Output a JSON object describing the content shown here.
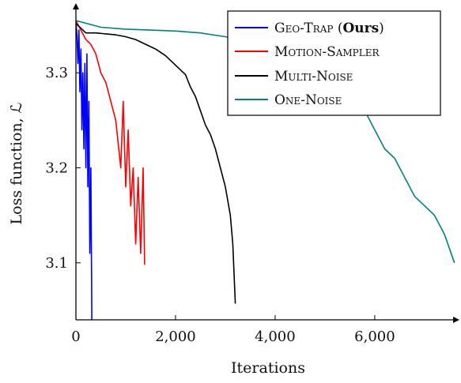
{
  "chart_data": {
    "type": "line",
    "xlabel": "Iterations",
    "ylabel": "Loss function, ℒ",
    "xlim": [
      0,
      7700
    ],
    "ylim": [
      3.04,
      3.37
    ],
    "x_ticks": [
      0,
      2000,
      4000,
      6000
    ],
    "x_tick_labels": [
      "0",
      "2,000",
      "4,000",
      "6,000"
    ],
    "y_ticks": [
      3.1,
      3.2,
      3.3
    ],
    "y_tick_labels": [
      "3.1",
      "3.2",
      "3.3"
    ],
    "grid": false,
    "legend_position": "top-right",
    "legend": {
      "geo_trap_prefix": "Geo-Trap (",
      "geo_trap_bold": "Ours",
      "geo_trap_suffix": ")",
      "motion_sampler": "Motion-Sampler",
      "multi_noise": "Multi-Noise",
      "one_noise": "One-Noise"
    },
    "series": [
      {
        "name": "Geo-Trap (Ours)",
        "color": "#0000ff",
        "x": [
          0,
          20,
          40,
          60,
          80,
          100,
          120,
          140,
          160,
          180,
          200,
          220,
          240,
          260,
          280,
          300,
          320
        ],
        "y": [
          3.355,
          3.34,
          3.31,
          3.345,
          3.28,
          3.325,
          3.24,
          3.3,
          3.22,
          3.31,
          3.2,
          3.32,
          3.18,
          3.27,
          3.11,
          3.2,
          3.035
        ]
      },
      {
        "name": "Motion-Sampler",
        "color": "#ff0000",
        "x": [
          0,
          100,
          200,
          300,
          400,
          500,
          600,
          700,
          800,
          900,
          950,
          1000,
          1050,
          1100,
          1150,
          1200,
          1250,
          1300,
          1350,
          1380
        ],
        "y": [
          3.355,
          3.345,
          3.335,
          3.33,
          3.32,
          3.3,
          3.29,
          3.27,
          3.25,
          3.2,
          3.27,
          3.18,
          3.24,
          3.16,
          3.2,
          3.12,
          3.19,
          3.11,
          3.2,
          3.098
        ]
      },
      {
        "name": "Multi-Noise",
        "color": "#000000",
        "x": [
          0,
          200,
          400,
          600,
          800,
          1000,
          1200,
          1400,
          1600,
          1800,
          2000,
          2200,
          2300,
          2400,
          2500,
          2600,
          2700,
          2800,
          2900,
          3000,
          3100,
          3150,
          3200
        ],
        "y": [
          3.352,
          3.342,
          3.342,
          3.341,
          3.34,
          3.338,
          3.335,
          3.33,
          3.325,
          3.318,
          3.308,
          3.298,
          3.285,
          3.275,
          3.26,
          3.245,
          3.235,
          3.22,
          3.2,
          3.18,
          3.15,
          3.12,
          3.057
        ]
      },
      {
        "name": "One-Noise",
        "color": "#008080",
        "x": [
          0,
          500,
          1000,
          1500,
          2000,
          2500,
          3000,
          3500,
          4000,
          4500,
          5000,
          5500,
          5800,
          6000,
          6200,
          6400,
          6600,
          6800,
          7000,
          7200,
          7400,
          7600
        ],
        "y": [
          3.355,
          3.348,
          3.346,
          3.345,
          3.344,
          3.342,
          3.338,
          3.334,
          3.33,
          3.32,
          3.3,
          3.27,
          3.26,
          3.24,
          3.22,
          3.21,
          3.19,
          3.17,
          3.16,
          3.15,
          3.13,
          3.1
        ]
      }
    ]
  }
}
